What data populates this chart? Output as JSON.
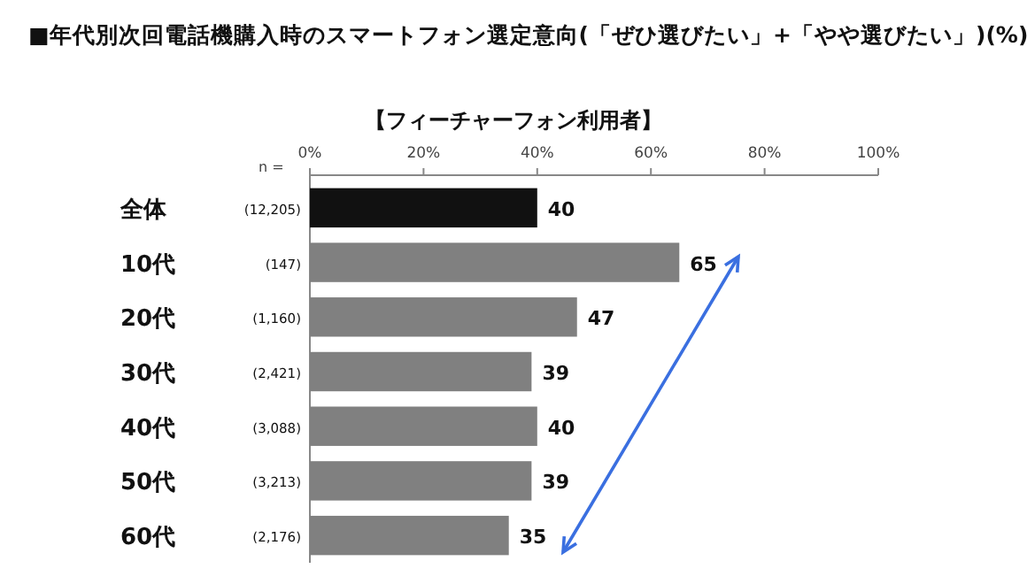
{
  "chart_data": {
    "type": "bar",
    "orientation": "horizontal",
    "title": "■年代別次回電話機購入時のスマートフォン選定意向(「ぜひ選びたい」+「やや選びたい」)(%)",
    "subtitle": "【フィーチャーフォン利用者】",
    "categories": [
      "全体",
      "10代",
      "20代",
      "30代",
      "40代",
      "50代",
      "60代"
    ],
    "values": [
      40,
      65,
      47,
      39,
      40,
      39,
      35
    ],
    "colors": [
      "#111111",
      "#808080",
      "#808080",
      "#808080",
      "#808080",
      "#808080",
      "#808080"
    ],
    "xlim": [
      0,
      100
    ],
    "xticks": [
      {
        "value": 0,
        "label": "0%"
      },
      {
        "value": 20,
        "label": "20%"
      },
      {
        "value": 40,
        "label": "40%"
      },
      {
        "value": 60,
        "label": "60%"
      },
      {
        "value": 80,
        "label": "80%"
      },
      {
        "value": 100,
        "label": "100%"
      }
    ],
    "data_labels": true,
    "annotations": [
      "n =",
      "(12,205)",
      "(147)",
      "(1,160)",
      "(2,421)",
      "(3,088)",
      "(3,213)",
      "(2,176)"
    ]
  }
}
